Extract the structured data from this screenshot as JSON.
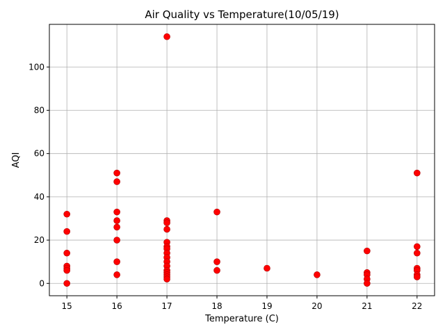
{
  "chart_data": {
    "type": "scatter",
    "title": "Air Quality vs Temperature(10/05/19)",
    "xlabel": "Temperature (C)",
    "ylabel": "AQI",
    "xlim": [
      14.65,
      22.35
    ],
    "ylim": [
      -5.7,
      119.7
    ],
    "xticks": [
      15,
      16,
      17,
      18,
      19,
      20,
      21,
      22
    ],
    "yticks": [
      0,
      20,
      40,
      60,
      80,
      100
    ],
    "grid": true,
    "marker_color": "#ff0000",
    "marker_edge_color": "#b00000",
    "points": [
      {
        "x": 15,
        "y": 32
      },
      {
        "x": 15,
        "y": 24
      },
      {
        "x": 15,
        "y": 14
      },
      {
        "x": 15,
        "y": 8
      },
      {
        "x": 15,
        "y": 7
      },
      {
        "x": 15,
        "y": 6
      },
      {
        "x": 15,
        "y": 0
      },
      {
        "x": 16,
        "y": 51
      },
      {
        "x": 16,
        "y": 47
      },
      {
        "x": 16,
        "y": 33
      },
      {
        "x": 16,
        "y": 29
      },
      {
        "x": 16,
        "y": 26
      },
      {
        "x": 16,
        "y": 20
      },
      {
        "x": 16,
        "y": 10
      },
      {
        "x": 16,
        "y": 4
      },
      {
        "x": 17,
        "y": 114
      },
      {
        "x": 17,
        "y": 29
      },
      {
        "x": 17,
        "y": 28
      },
      {
        "x": 17,
        "y": 25
      },
      {
        "x": 17,
        "y": 19
      },
      {
        "x": 17,
        "y": 17
      },
      {
        "x": 17,
        "y": 16
      },
      {
        "x": 17,
        "y": 14
      },
      {
        "x": 17,
        "y": 12
      },
      {
        "x": 17,
        "y": 10
      },
      {
        "x": 17,
        "y": 8
      },
      {
        "x": 17,
        "y": 6
      },
      {
        "x": 17,
        "y": 5
      },
      {
        "x": 17,
        "y": 4
      },
      {
        "x": 17,
        "y": 3
      },
      {
        "x": 17,
        "y": 2
      },
      {
        "x": 18,
        "y": 33
      },
      {
        "x": 18,
        "y": 10
      },
      {
        "x": 18,
        "y": 6
      },
      {
        "x": 19,
        "y": 7
      },
      {
        "x": 20,
        "y": 4
      },
      {
        "x": 21,
        "y": 15
      },
      {
        "x": 21,
        "y": 5
      },
      {
        "x": 21,
        "y": 4
      },
      {
        "x": 21,
        "y": 2
      },
      {
        "x": 21,
        "y": 0
      },
      {
        "x": 22,
        "y": 51
      },
      {
        "x": 22,
        "y": 17
      },
      {
        "x": 22,
        "y": 14
      },
      {
        "x": 22,
        "y": 7
      },
      {
        "x": 22,
        "y": 6
      },
      {
        "x": 22,
        "y": 4
      },
      {
        "x": 22,
        "y": 3
      }
    ]
  }
}
